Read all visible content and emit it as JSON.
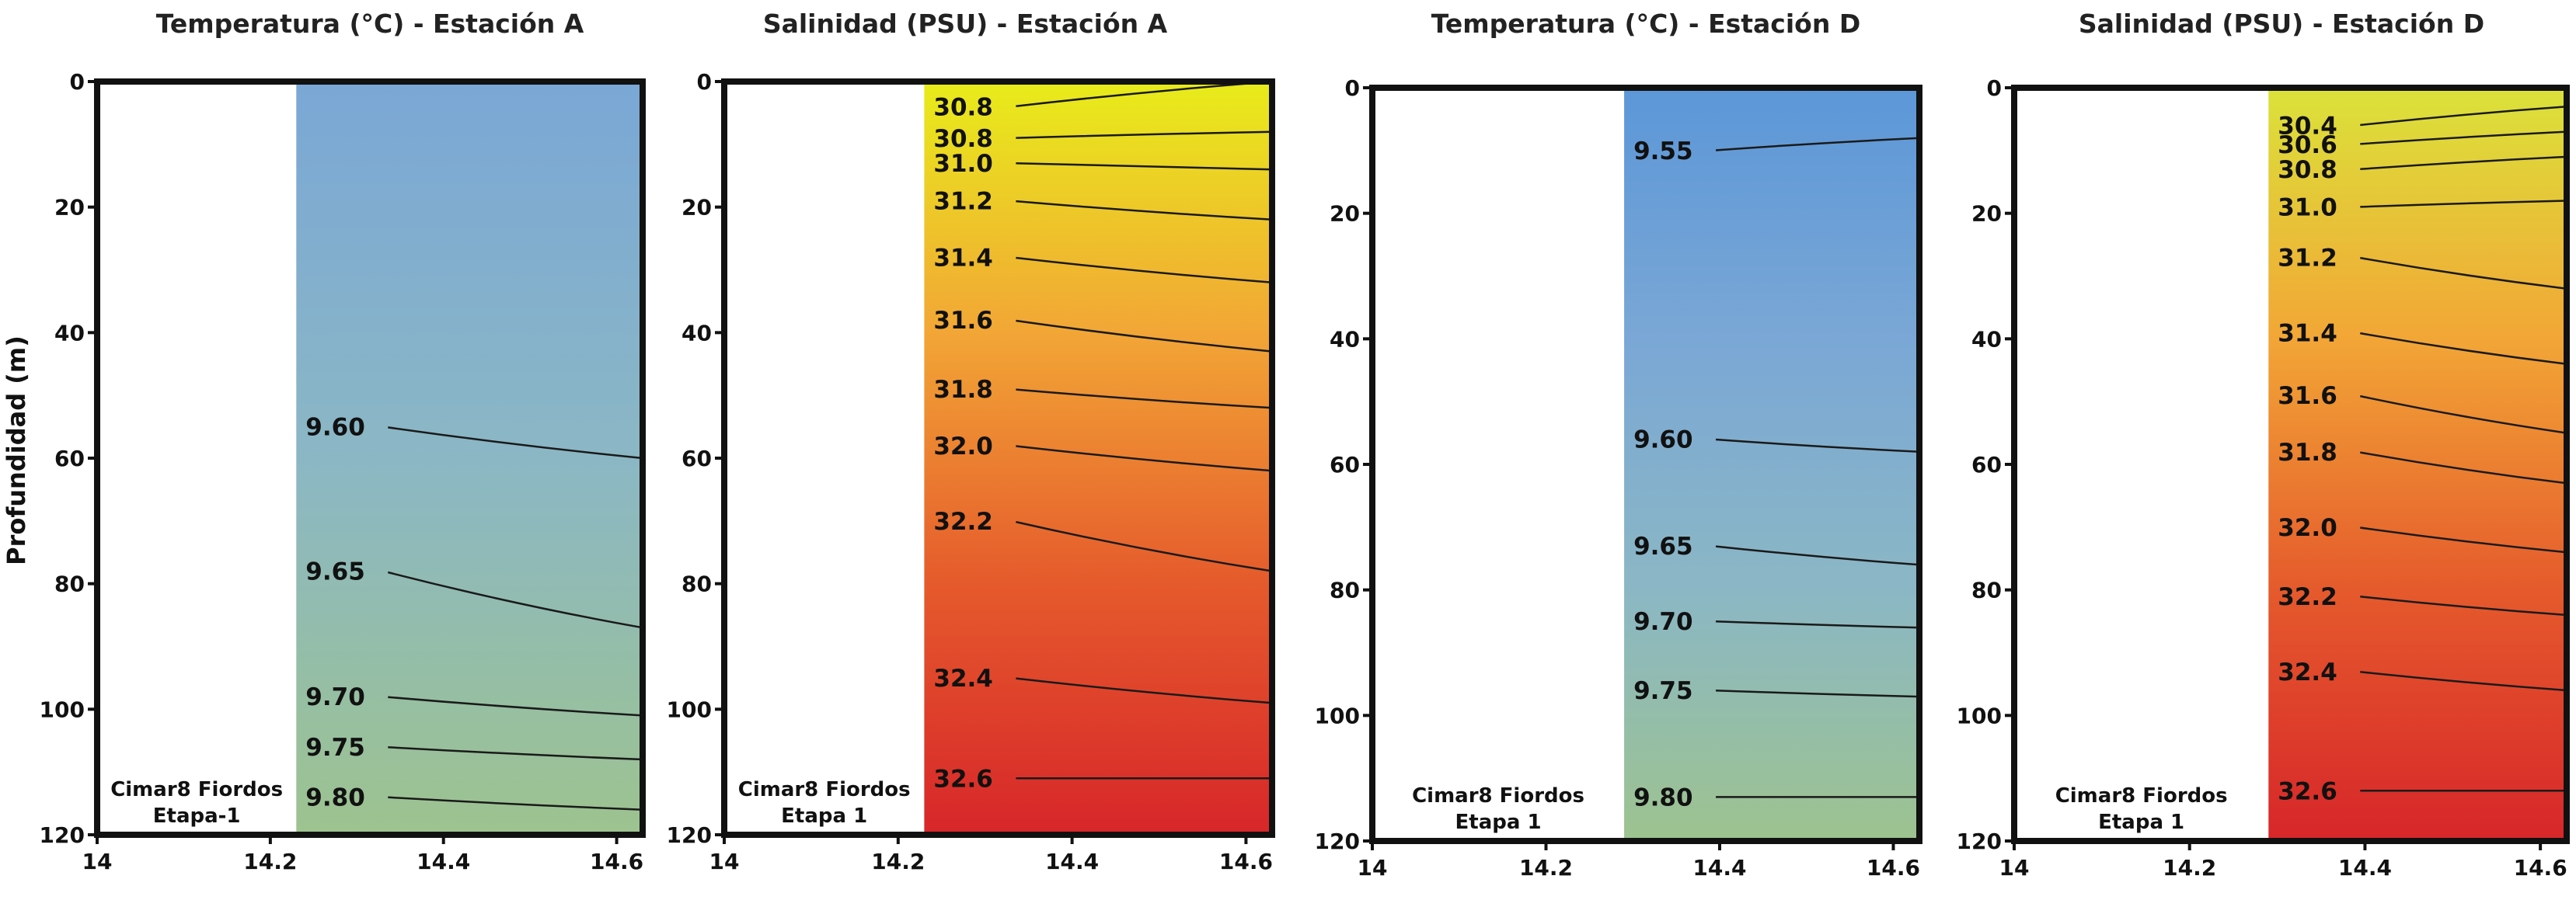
{
  "y_axis_label": "Profundidad (m)",
  "annotation_lines": [
    "Cimar8 Fiordos",
    "Etapa-1"
  ],
  "annotation_lines_alt": [
    "Cimar8 Fiordos",
    "Etapa 1"
  ],
  "chart_data": [
    {
      "type": "contour",
      "title": "Temperatura (°C) - Estación A",
      "ylabel": "Profundidad (m)",
      "xlim": [
        14,
        14.63
      ],
      "ylim": [
        120,
        0
      ],
      "x_ticks": [
        "14",
        "14.2",
        "14.4",
        "14.6"
      ],
      "y_ticks": [
        "0",
        "20",
        "40",
        "60",
        "80",
        "100",
        "120"
      ],
      "data_x_start": 14.23,
      "palette": [
        "#7aa7d5",
        "#8bb7c5",
        "#9dc38f"
      ],
      "contours": [
        {
          "label": "9.60",
          "depths": [
            55,
            60
          ]
        },
        {
          "label": "9.65",
          "depths": [
            78,
            87
          ]
        },
        {
          "label": "9.70",
          "depths": [
            98,
            101
          ]
        },
        {
          "label": "9.75",
          "depths": [
            106,
            108
          ]
        },
        {
          "label": "9.80",
          "depths": [
            114,
            116
          ]
        }
      ]
    },
    {
      "type": "contour",
      "title": "Salinidad (PSU) - Estación A",
      "xlim": [
        14,
        14.63
      ],
      "ylim": [
        120,
        0
      ],
      "x_ticks": [
        "14",
        "14.2",
        "14.4",
        "14.6"
      ],
      "y_ticks": [
        "0",
        "20",
        "40",
        "60",
        "80",
        "100",
        "120"
      ],
      "data_x_start": 14.23,
      "palette": [
        "#e8ec1a",
        "#f2a636",
        "#e55a2c",
        "#d7262a"
      ],
      "contours": [
        {
          "label": "30.8",
          "depths": [
            4,
            0
          ]
        },
        {
          "label": "30.8",
          "depths": [
            9,
            8
          ]
        },
        {
          "label": "31.0",
          "depths": [
            13,
            14
          ]
        },
        {
          "label": "31.2",
          "depths": [
            19,
            22
          ]
        },
        {
          "label": "31.4",
          "depths": [
            28,
            32
          ]
        },
        {
          "label": "31.6",
          "depths": [
            38,
            43
          ]
        },
        {
          "label": "31.8",
          "depths": [
            49,
            52
          ]
        },
        {
          "label": "32.0",
          "depths": [
            58,
            62
          ]
        },
        {
          "label": "32.2",
          "depths": [
            70,
            78
          ]
        },
        {
          "label": "32.4",
          "depths": [
            95,
            99
          ]
        },
        {
          "label": "32.6",
          "depths": [
            111,
            111
          ]
        }
      ]
    },
    {
      "type": "contour",
      "title": "Temperatura (°C) - Estación D",
      "xlim": [
        14,
        14.63
      ],
      "ylim": [
        120,
        0
      ],
      "x_ticks": [
        "14",
        "14.2",
        "14.4",
        "14.6"
      ],
      "y_ticks": [
        "0",
        "20",
        "40",
        "60",
        "80",
        "100",
        "120"
      ],
      "data_x_start": 14.29,
      "palette": [
        "#5c97d8",
        "#7aa7d5",
        "#8bb7c5",
        "#9dc38f"
      ],
      "contours": [
        {
          "label": "9.55",
          "depths": [
            10,
            8
          ]
        },
        {
          "label": "9.60",
          "depths": [
            56,
            58
          ]
        },
        {
          "label": "9.65",
          "depths": [
            73,
            76
          ]
        },
        {
          "label": "9.70",
          "depths": [
            85,
            86
          ]
        },
        {
          "label": "9.75",
          "depths": [
            96,
            97
          ]
        },
        {
          "label": "9.80",
          "depths": [
            113,
            113
          ]
        }
      ]
    },
    {
      "type": "contour",
      "title": "Salinidad (PSU) - Estación D",
      "xlim": [
        14,
        14.63
      ],
      "ylim": [
        120,
        0
      ],
      "x_ticks": [
        "14",
        "14.2",
        "14.4",
        "14.6"
      ],
      "y_ticks": [
        "0",
        "20",
        "40",
        "60",
        "80",
        "100",
        "120"
      ],
      "data_x_start": 14.29,
      "palette": [
        "#dbe23a",
        "#f2a636",
        "#e55a2c",
        "#d7262a"
      ],
      "contours": [
        {
          "label": "30.4",
          "depths": [
            6,
            3
          ]
        },
        {
          "label": "30.6",
          "depths": [
            9,
            7
          ]
        },
        {
          "label": "30.8",
          "depths": [
            13,
            11
          ]
        },
        {
          "label": "31.0",
          "depths": [
            19,
            18
          ]
        },
        {
          "label": "31.2",
          "depths": [
            27,
            32
          ]
        },
        {
          "label": "31.4",
          "depths": [
            39,
            44
          ]
        },
        {
          "label": "31.6",
          "depths": [
            49,
            55
          ]
        },
        {
          "label": "31.8",
          "depths": [
            58,
            63
          ]
        },
        {
          "label": "32.0",
          "depths": [
            70,
            74
          ]
        },
        {
          "label": "32.2",
          "depths": [
            81,
            84
          ]
        },
        {
          "label": "32.4",
          "depths": [
            93,
            96
          ]
        },
        {
          "label": "32.6",
          "depths": [
            112,
            112
          ]
        }
      ]
    }
  ]
}
